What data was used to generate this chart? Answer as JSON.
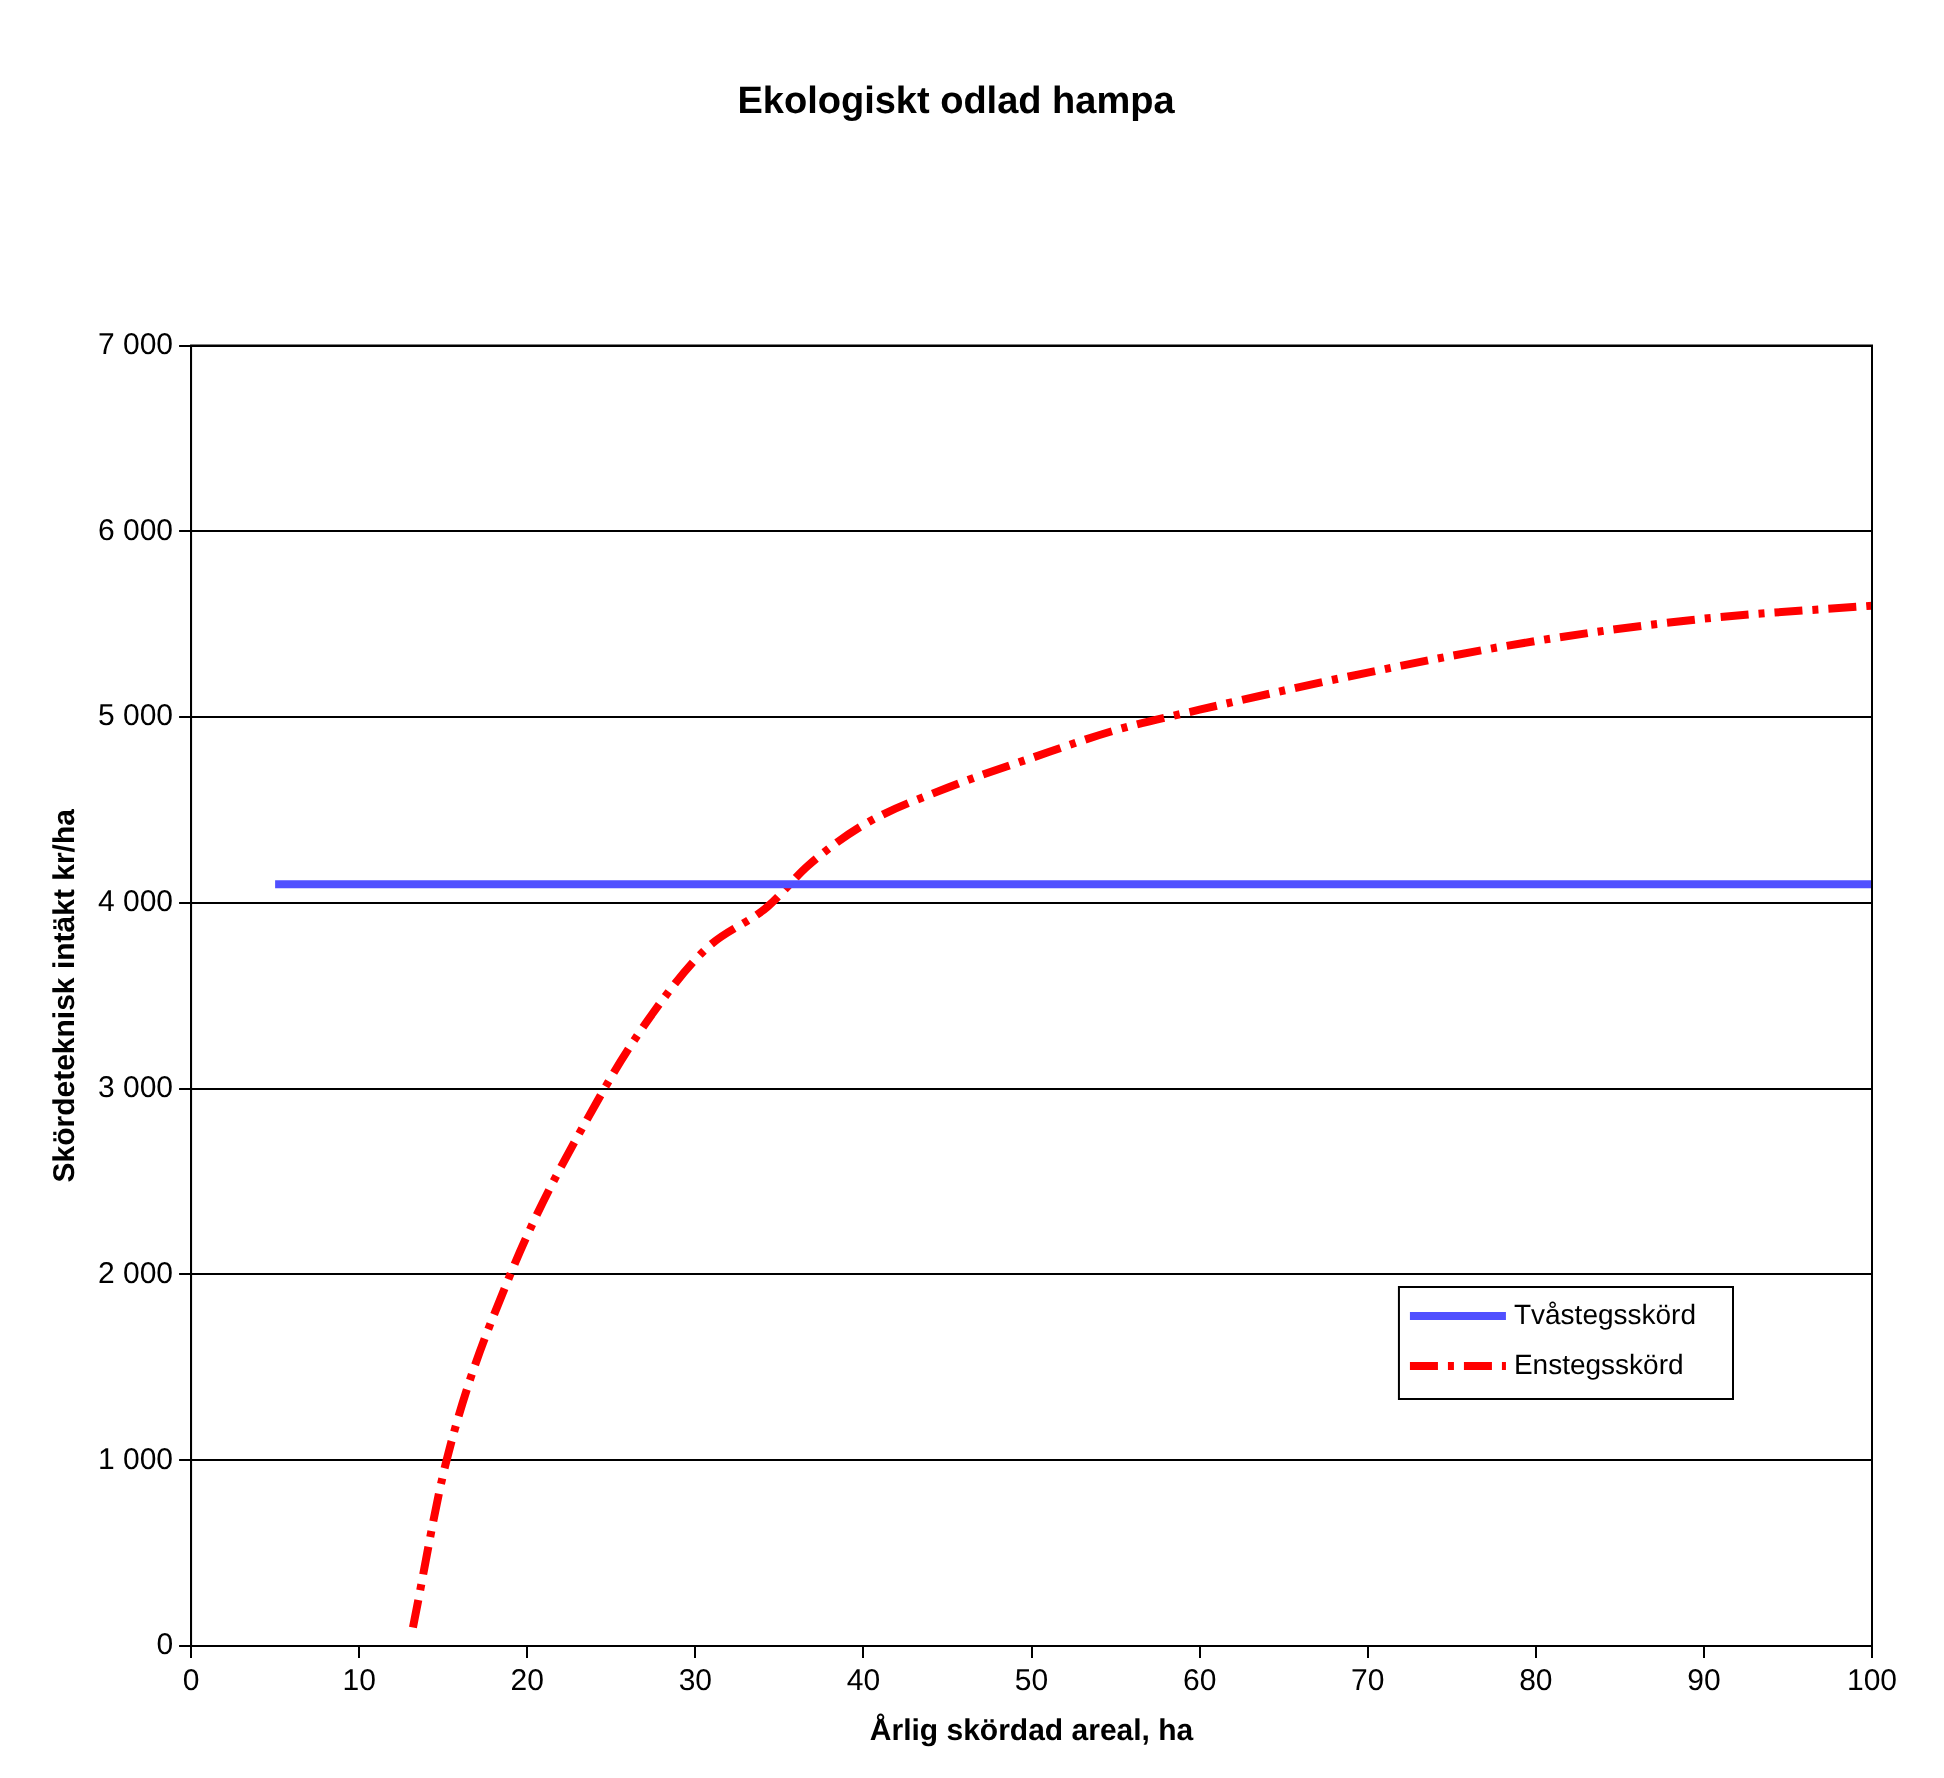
{
  "chart_data": {
    "type": "line",
    "title": "Ekologiskt odlad hampa",
    "xlabel": "Årlig skördad areal, ha",
    "ylabel": "Skördeteknisk intäkt kr/ha",
    "xlim": [
      0,
      100
    ],
    "xticks": [
      0,
      10,
      20,
      30,
      40,
      50,
      60,
      70,
      80,
      90,
      100
    ],
    "ylim": [
      0,
      7000
    ],
    "yticks": [
      {
        "value": 0,
        "label": "0"
      },
      {
        "value": 1000,
        "label": "1 000"
      },
      {
        "value": 2000,
        "label": "2 000"
      },
      {
        "value": 3000,
        "label": "3 000"
      },
      {
        "value": 4000,
        "label": "4 000"
      },
      {
        "value": 5000,
        "label": "5 000"
      },
      {
        "value": 6000,
        "label": "6 000"
      },
      {
        "value": 7000,
        "label": "7 000"
      }
    ],
    "grid": "y",
    "legend": "bottom right",
    "marker": "none",
    "series": [
      {
        "name": "Tvåstegsskörd",
        "color": "#5050ff",
        "line_style": "solid",
        "x": [
          5,
          100
        ],
        "values": [
          4100,
          4100
        ]
      },
      {
        "name": "Enstegsskörd",
        "color": "#ff0000",
        "line_style": "dashed",
        "x": [
          13.2,
          15.2,
          18.9,
          24.4,
          27.5,
          30.6,
          34.3,
          36.7,
          40,
          45,
          50,
          55,
          60,
          70,
          80,
          90,
          100
        ],
        "values": [
          100,
          1000,
          1980,
          2970,
          3410,
          3750,
          3980,
          4200,
          4420,
          4620,
          4780,
          4930,
          5040,
          5240,
          5410,
          5530,
          5600
        ]
      }
    ]
  }
}
